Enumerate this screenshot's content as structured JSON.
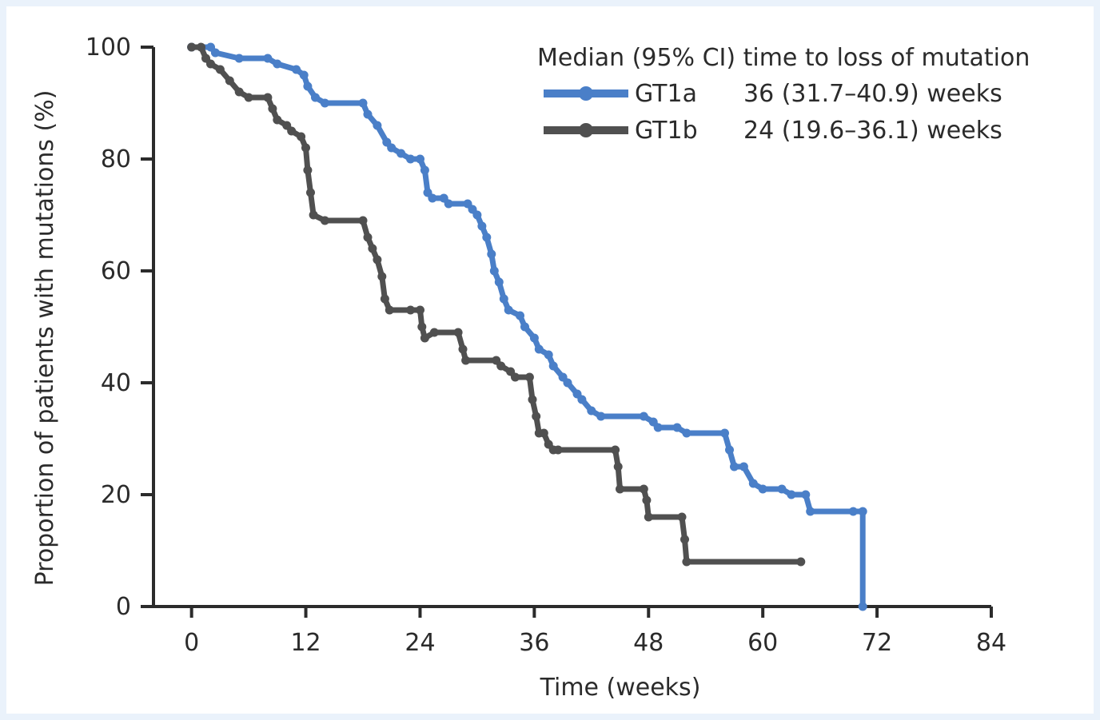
{
  "chart_data": {
    "type": "line",
    "xlabel": "Time (weeks)",
    "ylabel": "Proportion of patients with mutations (%)",
    "xlim": [
      -4,
      84
    ],
    "ylim": [
      0,
      100
    ],
    "xticks": [
      0,
      12,
      24,
      36,
      48,
      60,
      72,
      84
    ],
    "yticks": [
      0,
      20,
      40,
      60,
      80,
      100
    ],
    "step": true,
    "legend": {
      "title": "Median (95% CI) time to loss of mutation",
      "placement": "top-right"
    },
    "series": [
      {
        "name": "GT1a",
        "stat": "36 (31.7–40.9) weeks",
        "color": "#4a7fc8",
        "points": [
          [
            0,
            100
          ],
          [
            2,
            100
          ],
          [
            2.5,
            99
          ],
          [
            5,
            98
          ],
          [
            8,
            98
          ],
          [
            9,
            97
          ],
          [
            11,
            96
          ],
          [
            11.8,
            95
          ],
          [
            12.2,
            93
          ],
          [
            13,
            91
          ],
          [
            14,
            90
          ],
          [
            18,
            90
          ],
          [
            18.5,
            88
          ],
          [
            19.5,
            86
          ],
          [
            20.5,
            83
          ],
          [
            21,
            82
          ],
          [
            22,
            81
          ],
          [
            23,
            80
          ],
          [
            24,
            80
          ],
          [
            24.5,
            78
          ],
          [
            24.8,
            74
          ],
          [
            25.3,
            73
          ],
          [
            26.5,
            73
          ],
          [
            27,
            72
          ],
          [
            29,
            72
          ],
          [
            29.5,
            71
          ],
          [
            30,
            70
          ],
          [
            30.5,
            68
          ],
          [
            31,
            66
          ],
          [
            31.5,
            63
          ],
          [
            31.8,
            60
          ],
          [
            32.3,
            58
          ],
          [
            32.8,
            55
          ],
          [
            33.3,
            53
          ],
          [
            34.5,
            52
          ],
          [
            35,
            50
          ],
          [
            36,
            48
          ],
          [
            36.5,
            46
          ],
          [
            37.5,
            45
          ],
          [
            38,
            43
          ],
          [
            39,
            41
          ],
          [
            39.5,
            40
          ],
          [
            40.5,
            38
          ],
          [
            41,
            37
          ],
          [
            42,
            35
          ],
          [
            43,
            34
          ],
          [
            47.5,
            34
          ],
          [
            48.5,
            33
          ],
          [
            49,
            32
          ],
          [
            51,
            32
          ],
          [
            52,
            31
          ],
          [
            56,
            31
          ],
          [
            56.5,
            28
          ],
          [
            57,
            25
          ],
          [
            58,
            25
          ],
          [
            59,
            22
          ],
          [
            60,
            21
          ],
          [
            62,
            21
          ],
          [
            63,
            20
          ],
          [
            64.5,
            20
          ],
          [
            65,
            17
          ],
          [
            69.5,
            17
          ],
          [
            70.5,
            17
          ],
          [
            70.5,
            0
          ]
        ]
      },
      {
        "name": "GT1b",
        "stat": "24 (19.6–36.1) weeks",
        "color": "#505050",
        "points": [
          [
            0,
            100
          ],
          [
            1,
            100
          ],
          [
            1.5,
            98
          ],
          [
            2,
            97
          ],
          [
            3,
            96
          ],
          [
            4,
            94
          ],
          [
            5,
            92
          ],
          [
            6,
            91
          ],
          [
            8,
            91
          ],
          [
            8.5,
            89
          ],
          [
            9,
            87
          ],
          [
            10,
            86
          ],
          [
            10.5,
            85
          ],
          [
            11.5,
            84
          ],
          [
            12,
            82
          ],
          [
            12.2,
            78
          ],
          [
            12.5,
            74
          ],
          [
            12.8,
            70
          ],
          [
            14,
            69
          ],
          [
            18,
            69
          ],
          [
            18.5,
            66
          ],
          [
            19,
            64
          ],
          [
            19.5,
            62
          ],
          [
            20,
            59
          ],
          [
            20.3,
            55
          ],
          [
            20.8,
            53
          ],
          [
            23,
            53
          ],
          [
            24,
            53
          ],
          [
            24.2,
            50
          ],
          [
            24.5,
            48
          ],
          [
            25.5,
            49
          ],
          [
            28,
            49
          ],
          [
            28.5,
            46
          ],
          [
            28.8,
            44
          ],
          [
            32,
            44
          ],
          [
            32.5,
            43
          ],
          [
            33.5,
            42
          ],
          [
            34,
            41
          ],
          [
            35.5,
            41
          ],
          [
            35.8,
            37
          ],
          [
            36.2,
            34
          ],
          [
            36.5,
            31
          ],
          [
            37,
            31
          ],
          [
            37.5,
            29
          ],
          [
            38,
            28
          ],
          [
            38.5,
            28
          ],
          [
            44.5,
            28
          ],
          [
            44.8,
            25
          ],
          [
            45,
            21
          ],
          [
            47.5,
            21
          ],
          [
            47.8,
            19
          ],
          [
            48,
            16
          ],
          [
            51.5,
            16
          ],
          [
            51.8,
            12
          ],
          [
            52,
            8
          ],
          [
            64,
            8
          ]
        ]
      }
    ]
  }
}
